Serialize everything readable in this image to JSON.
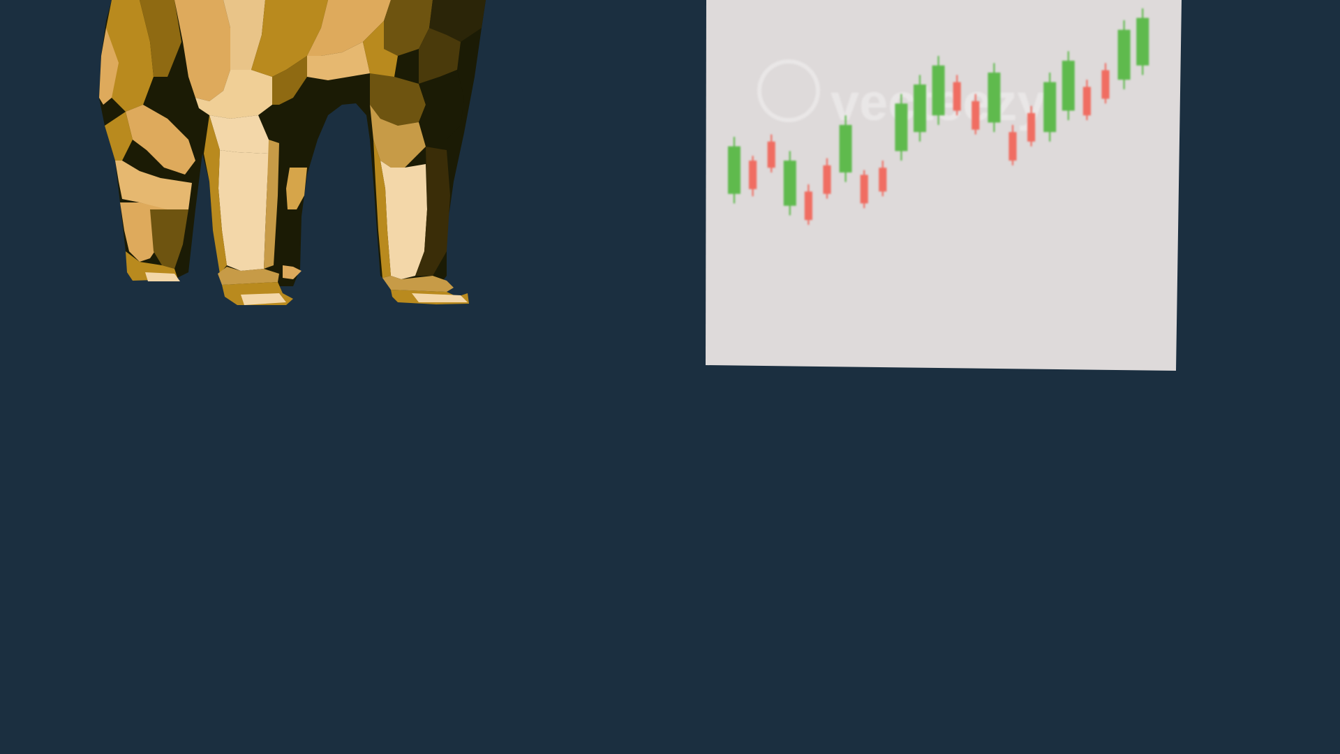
{
  "scene": {
    "background_color": "#1b2f40",
    "subject": "bull-figure",
    "bull": {
      "material_colors": {
        "highlight": "#f3d7a9",
        "light": "#deaa5c",
        "mid": "#b98a1e",
        "dark": "#6e5410",
        "shadow": "#1b1b05"
      }
    },
    "chart_board": {
      "board_color": "#dedada",
      "watermark_text": "vecteezy",
      "chart_data": {
        "type": "candlestick",
        "up_color": "#5fba4e",
        "down_color": "#f06d62",
        "trend": "upward",
        "candles": [
          {
            "direction": "up",
            "open": 28,
            "close": 48,
            "low": 24,
            "high": 52
          },
          {
            "direction": "down",
            "open": 42,
            "close": 30,
            "low": 27,
            "high": 44
          },
          {
            "direction": "down",
            "open": 50,
            "close": 39,
            "low": 37,
            "high": 53
          },
          {
            "direction": "up",
            "open": 23,
            "close": 42,
            "low": 19,
            "high": 46
          },
          {
            "direction": "down",
            "open": 29,
            "close": 17,
            "low": 15,
            "high": 32
          },
          {
            "direction": "down",
            "open": 40,
            "close": 28,
            "low": 26,
            "high": 43
          },
          {
            "direction": "up",
            "open": 37,
            "close": 57,
            "low": 33,
            "high": 61
          },
          {
            "direction": "down",
            "open": 36,
            "close": 24,
            "low": 22,
            "high": 38
          },
          {
            "direction": "down",
            "open": 39,
            "close": 29,
            "low": 27,
            "high": 42
          },
          {
            "direction": "up",
            "open": 46,
            "close": 66,
            "low": 42,
            "high": 70
          },
          {
            "direction": "up",
            "open": 54,
            "close": 74,
            "low": 50,
            "high": 78
          },
          {
            "direction": "up",
            "open": 61,
            "close": 82,
            "low": 57,
            "high": 86
          },
          {
            "direction": "down",
            "open": 75,
            "close": 63,
            "low": 61,
            "high": 78
          },
          {
            "direction": "down",
            "open": 67,
            "close": 55,
            "low": 53,
            "high": 70
          },
          {
            "direction": "up",
            "open": 58,
            "close": 79,
            "low": 54,
            "high": 83
          },
          {
            "direction": "down",
            "open": 54,
            "close": 42,
            "low": 40,
            "high": 57
          },
          {
            "direction": "down",
            "open": 62,
            "close": 50,
            "low": 48,
            "high": 65
          },
          {
            "direction": "up",
            "open": 54,
            "close": 75,
            "low": 50,
            "high": 79
          },
          {
            "direction": "up",
            "open": 63,
            "close": 84,
            "low": 59,
            "high": 88
          },
          {
            "direction": "down",
            "open": 73,
            "close": 61,
            "low": 59,
            "high": 76
          },
          {
            "direction": "down",
            "open": 80,
            "close": 68,
            "low": 66,
            "high": 83
          },
          {
            "direction": "up",
            "open": 76,
            "close": 97,
            "low": 72,
            "high": 101
          },
          {
            "direction": "up",
            "open": 82,
            "close": 102,
            "low": 78,
            "high": 106
          }
        ]
      }
    }
  }
}
